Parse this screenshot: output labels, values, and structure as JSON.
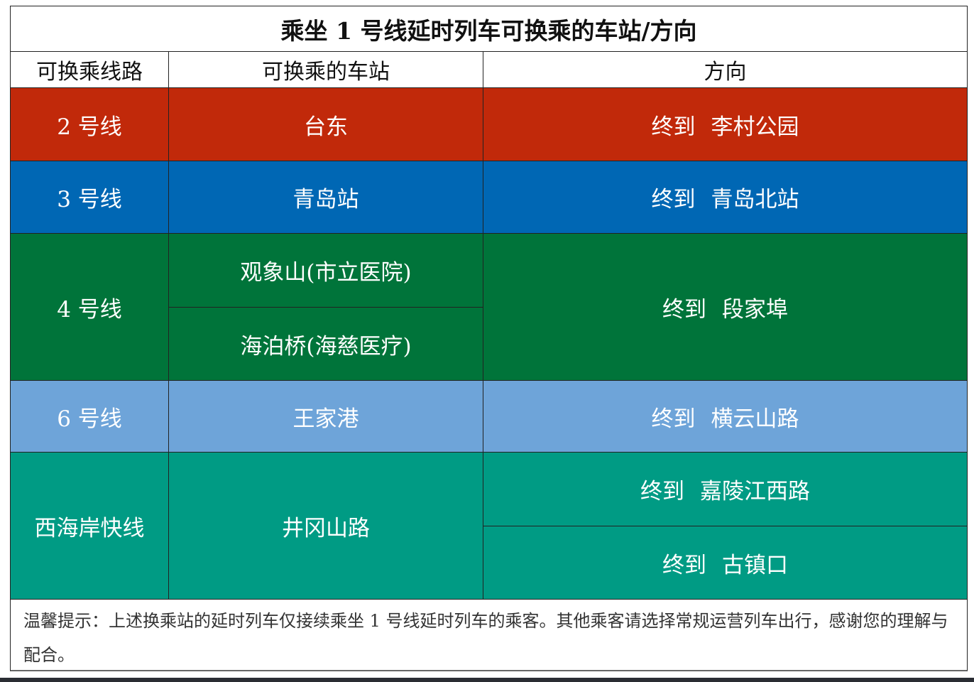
{
  "title": "乘坐 1 号线延时列车可换乘的车站/方向",
  "headers": [
    "可换乘线路",
    "可换乘的车站",
    "方向"
  ],
  "colors": {
    "line2": "#c1290a",
    "line3": "#0067b4",
    "line4": "#00743a",
    "line6": "#6ea4d9",
    "west": "#009b84"
  },
  "rows": [
    {
      "line": "2 号线",
      "stations": [
        "台东"
      ],
      "directions": [
        {
          "prefix": "终到",
          "dest": "李村公园"
        }
      ]
    },
    {
      "line": "3 号线",
      "stations": [
        "青岛站"
      ],
      "directions": [
        {
          "prefix": "终到",
          "dest": "青岛北站"
        }
      ]
    },
    {
      "line": "4 号线",
      "stations": [
        "观象山(市立医院)",
        "海泊桥(海慈医疗)"
      ],
      "directions": [
        {
          "prefix": "终到",
          "dest": "段家埠"
        }
      ]
    },
    {
      "line": "6 号线",
      "stations": [
        "王家港"
      ],
      "directions": [
        {
          "prefix": "终到",
          "dest": "横云山路"
        }
      ]
    },
    {
      "line": "西海岸快线",
      "stations": [
        "井冈山路"
      ],
      "directions": [
        {
          "prefix": "终到",
          "dest": "嘉陵江西路"
        },
        {
          "prefix": "终到",
          "dest": "古镇口"
        }
      ]
    }
  ],
  "footer": "温馨提示：上述换乘站的延时列车仅接续乘坐 1 号线延时列车的乘客。其他乘客请选择常规运营列车出行，感谢您的理解与配合。"
}
